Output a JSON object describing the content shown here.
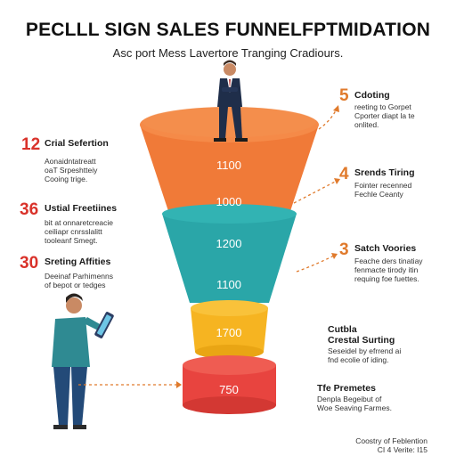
{
  "title": "PECLLL SIGN SALES FUNNELFPTMIDATION",
  "subtitle": "Asc port Mess Lavertore Tranging Cradiours.",
  "colors": {
    "orange": "#F07A38",
    "teal": "#2AA6A8",
    "yellow": "#F6B421",
    "red": "#E8443F",
    "accent_red": "#D9322A",
    "arrow": "#E07A2C"
  },
  "funnel_values": [
    "1100",
    "1000",
    "1200",
    "1100",
    "1700",
    "750"
  ],
  "left": [
    {
      "number": "12",
      "label": "Crial Sefertion",
      "desc": [
        "Aonaidntatreatt",
        "oaT Srpeshtteiy",
        "Cooing trige."
      ]
    },
    {
      "number": "36",
      "label": "Ustial Freetiines",
      "desc": [
        "bit at onnaretcreacie",
        "ceiliapr cnrsslalitt",
        "tooleanf Smegt."
      ]
    },
    {
      "number": "30",
      "label": "Sreting Affities",
      "desc": [
        "Deeinaf Parhimenns",
        "of bepot or tedges"
      ]
    }
  ],
  "right": [
    {
      "number": "5",
      "label": "Cdoting",
      "desc": [
        "reeting to Gorpet",
        "Cporter diapt la te",
        "onlited."
      ]
    },
    {
      "number": "4",
      "label": "Srends Tiring",
      "desc": [
        "Fointer recenned",
        "Fechle Ceanty"
      ]
    },
    {
      "number": "3",
      "label": "Satch Voories",
      "desc": [
        "Feache ders tinatiay",
        "fenmacte tirody itin",
        "requing foe fuettes."
      ]
    }
  ],
  "lower_right": [
    {
      "label": "Cutbla",
      "label2": "Crestal Surting",
      "desc": [
        "Seseidel by efrrend ai",
        "fnd ecolie of iding."
      ]
    },
    {
      "label": "Tfe Premetes",
      "desc": [
        "Denpla Begeibut of",
        "Woe Seaving Farmes."
      ]
    }
  ],
  "footer": [
    "Coostry of Feblention",
    "CI 4 Verite: I15"
  ]
}
